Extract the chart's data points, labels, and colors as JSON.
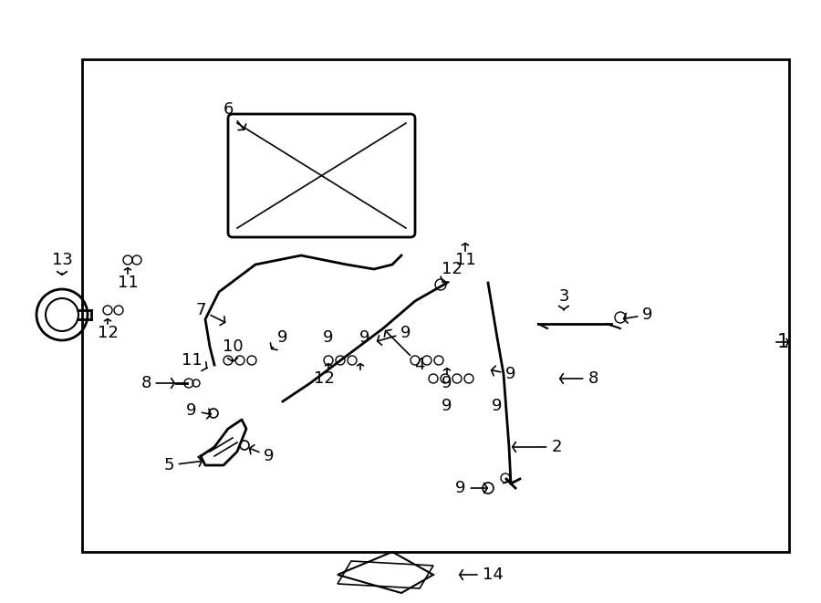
{
  "bg_color": "#ffffff",
  "box_color": "#000000",
  "line_color": "#000000",
  "part_numbers": [
    1,
    2,
    3,
    4,
    5,
    6,
    7,
    8,
    9,
    10,
    11,
    12,
    13,
    14
  ],
  "title": "",
  "fig_width": 9.0,
  "fig_height": 6.61,
  "dpi": 100
}
